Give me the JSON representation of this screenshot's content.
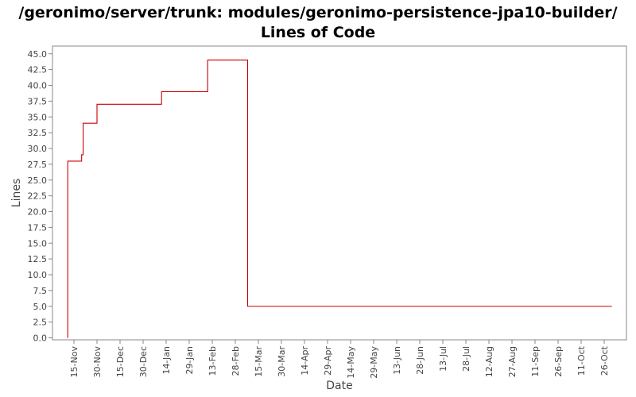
{
  "chart_data": {
    "type": "line",
    "title_line1": "/geronimo/server/trunk: modules/geronimo-persistence-jpa10-builder/",
    "title_line2": "Lines of Code",
    "xlabel": "Date",
    "ylabel": "Lines",
    "step": true,
    "grid": false,
    "legend": "none",
    "ylim": [
      0,
      46
    ],
    "y_ticks": [
      "0.0",
      "2.5",
      "5.0",
      "7.5",
      "10.0",
      "12.5",
      "15.0",
      "17.5",
      "20.0",
      "22.5",
      "25.0",
      "27.5",
      "30.0",
      "32.5",
      "35.0",
      "37.5",
      "40.0",
      "42.5",
      "45.0"
    ],
    "x_ticks": [
      "15-Nov",
      "30-Nov",
      "15-Dec",
      "30-Dec",
      "14-Jan",
      "29-Jan",
      "13-Feb",
      "28-Feb",
      "15-Mar",
      "30-Mar",
      "14-Apr",
      "29-Apr",
      "14-May",
      "29-May",
      "13-Jun",
      "28-Jun",
      "13-Jul",
      "28-Jul",
      "12-Aug",
      "27-Aug",
      "11-Sep",
      "26-Sep",
      "11-Oct",
      "26-Oct"
    ],
    "series": [
      {
        "color": "#cc0000",
        "x": [
          "11-Nov",
          "11-Nov",
          "20-Nov",
          "21-Nov",
          "30-Nov",
          "11-Jan",
          "11-Jan",
          "10-Feb",
          "10-Feb",
          "08-Mar",
          "08-Mar",
          "31-Oct"
        ],
        "values": [
          0,
          28,
          29,
          34,
          37,
          37,
          39,
          39,
          44,
          44,
          5,
          5
        ]
      }
    ]
  }
}
